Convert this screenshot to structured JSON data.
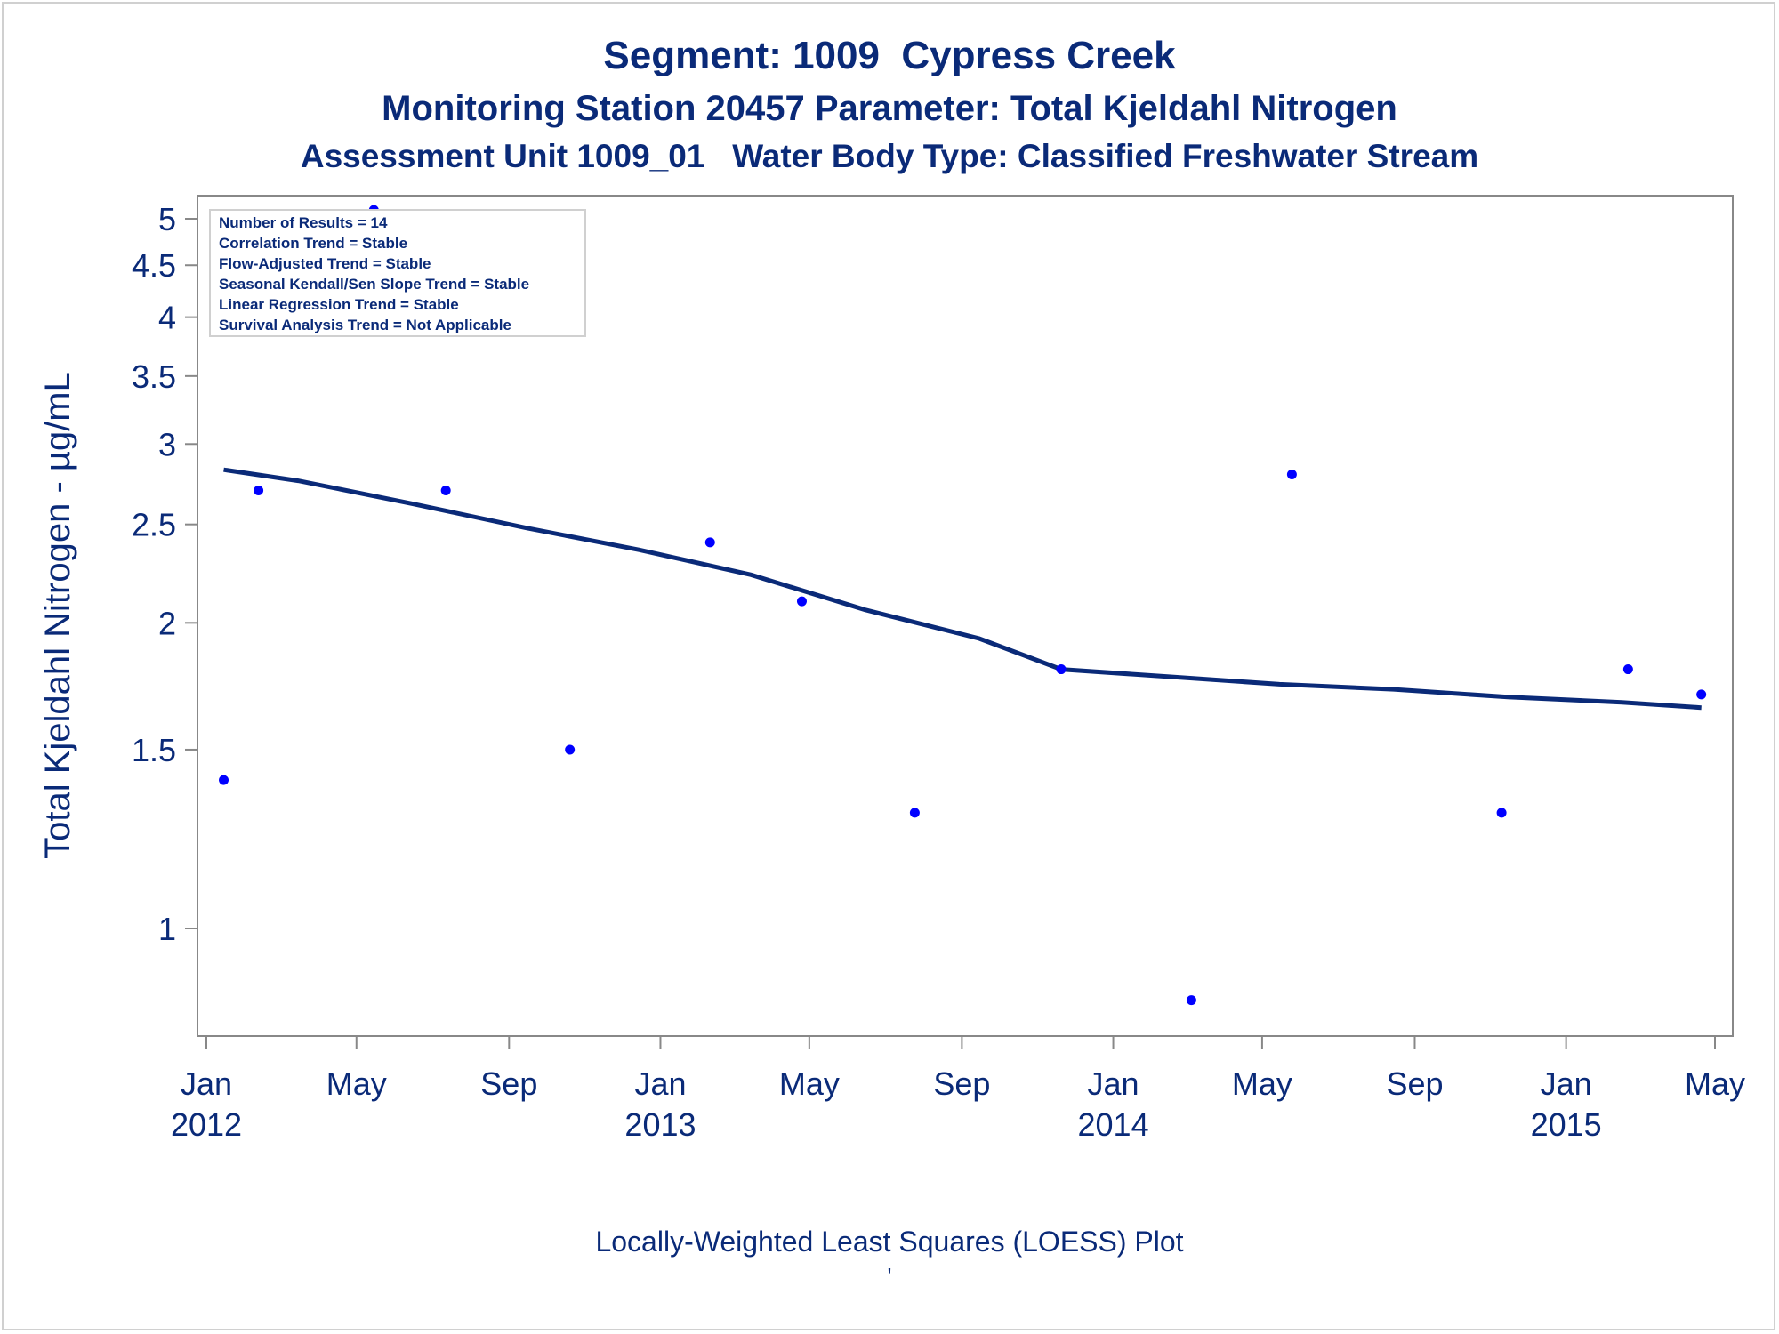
{
  "titles": {
    "line1": "Segment: 1009  Cypress Creek",
    "line2": "Monitoring Station 20457 Parameter: Total Kjeldahl Nitrogen",
    "line3": "Assessment Unit 1009_01   Water Body Type: Classified Freshwater Stream"
  },
  "footnote": "Locally-Weighted Least Squares (LOESS) Plot",
  "footnote_mark": "'",
  "colors": {
    "text": "#0a2a78",
    "points": "#0000ff",
    "loess_line": "#0a2a78",
    "axis": "#888888"
  },
  "chart_data": {
    "type": "scatter",
    "ylabel": "Total Kjeldahl Nitrogen -  µg/mL",
    "xlabel": "",
    "y_scale": "log",
    "ylim": [
      0.85,
      5.1
    ],
    "xlim": [
      "2011-12-25",
      "2015-05-10"
    ],
    "grid": false,
    "legend_position": "top-left",
    "yticks": [
      1,
      1.5,
      2,
      2.5,
      3,
      3.5,
      4,
      4.5,
      5
    ],
    "xticks": [
      {
        "date": "2012-01-01",
        "label": "Jan",
        "year": "2012"
      },
      {
        "date": "2012-05-01",
        "label": "May",
        "year": ""
      },
      {
        "date": "2012-09-01",
        "label": "Sep",
        "year": ""
      },
      {
        "date": "2013-01-01",
        "label": "Jan",
        "year": "2013"
      },
      {
        "date": "2013-05-01",
        "label": "May",
        "year": ""
      },
      {
        "date": "2013-09-01",
        "label": "Sep",
        "year": ""
      },
      {
        "date": "2014-01-01",
        "label": "Jan",
        "year": "2014"
      },
      {
        "date": "2014-05-01",
        "label": "May",
        "year": ""
      },
      {
        "date": "2014-09-01",
        "label": "Sep",
        "year": ""
      },
      {
        "date": "2015-01-01",
        "label": "Jan",
        "year": "2015"
      },
      {
        "date": "2015-05-01",
        "label": "May",
        "year": ""
      }
    ],
    "points": [
      {
        "x": "2012-01-15",
        "y": 1.4
      },
      {
        "x": "2012-02-12",
        "y": 2.7
      },
      {
        "x": "2012-05-15",
        "y": 5.1
      },
      {
        "x": "2012-07-12",
        "y": 2.7
      },
      {
        "x": "2012-10-20",
        "y": 1.5
      },
      {
        "x": "2013-02-10",
        "y": 2.4
      },
      {
        "x": "2013-04-25",
        "y": 2.1
      },
      {
        "x": "2013-07-25",
        "y": 1.3
      },
      {
        "x": "2013-11-20",
        "y": 1.8
      },
      {
        "x": "2014-03-05",
        "y": 0.85
      },
      {
        "x": "2014-05-25",
        "y": 2.8
      },
      {
        "x": "2014-11-10",
        "y": 1.3
      },
      {
        "x": "2015-02-20",
        "y": 1.8
      },
      {
        "x": "2015-04-20",
        "y": 1.7
      }
    ],
    "loess": [
      {
        "x": "2012-01-15",
        "y": 2.83
      },
      {
        "x": "2012-03-15",
        "y": 2.76
      },
      {
        "x": "2012-06-15",
        "y": 2.62
      },
      {
        "x": "2012-09-15",
        "y": 2.48
      },
      {
        "x": "2012-12-15",
        "y": 2.36
      },
      {
        "x": "2013-03-15",
        "y": 2.23
      },
      {
        "x": "2013-06-15",
        "y": 2.06
      },
      {
        "x": "2013-09-15",
        "y": 1.93
      },
      {
        "x": "2013-11-20",
        "y": 1.8
      },
      {
        "x": "2014-02-15",
        "y": 1.77
      },
      {
        "x": "2014-05-15",
        "y": 1.74
      },
      {
        "x": "2014-08-15",
        "y": 1.72
      },
      {
        "x": "2014-11-15",
        "y": 1.69
      },
      {
        "x": "2015-02-15",
        "y": 1.67
      },
      {
        "x": "2015-04-20",
        "y": 1.65
      }
    ]
  },
  "stats_box": {
    "lines": [
      "Number of Results = 14",
      "Correlation Trend = Stable",
      "Flow-Adjusted Trend = Stable",
      "Seasonal Kendall/Sen Slope Trend = Stable",
      "Linear Regression Trend = Stable",
      "Survival Analysis Trend = Not Applicable"
    ]
  }
}
